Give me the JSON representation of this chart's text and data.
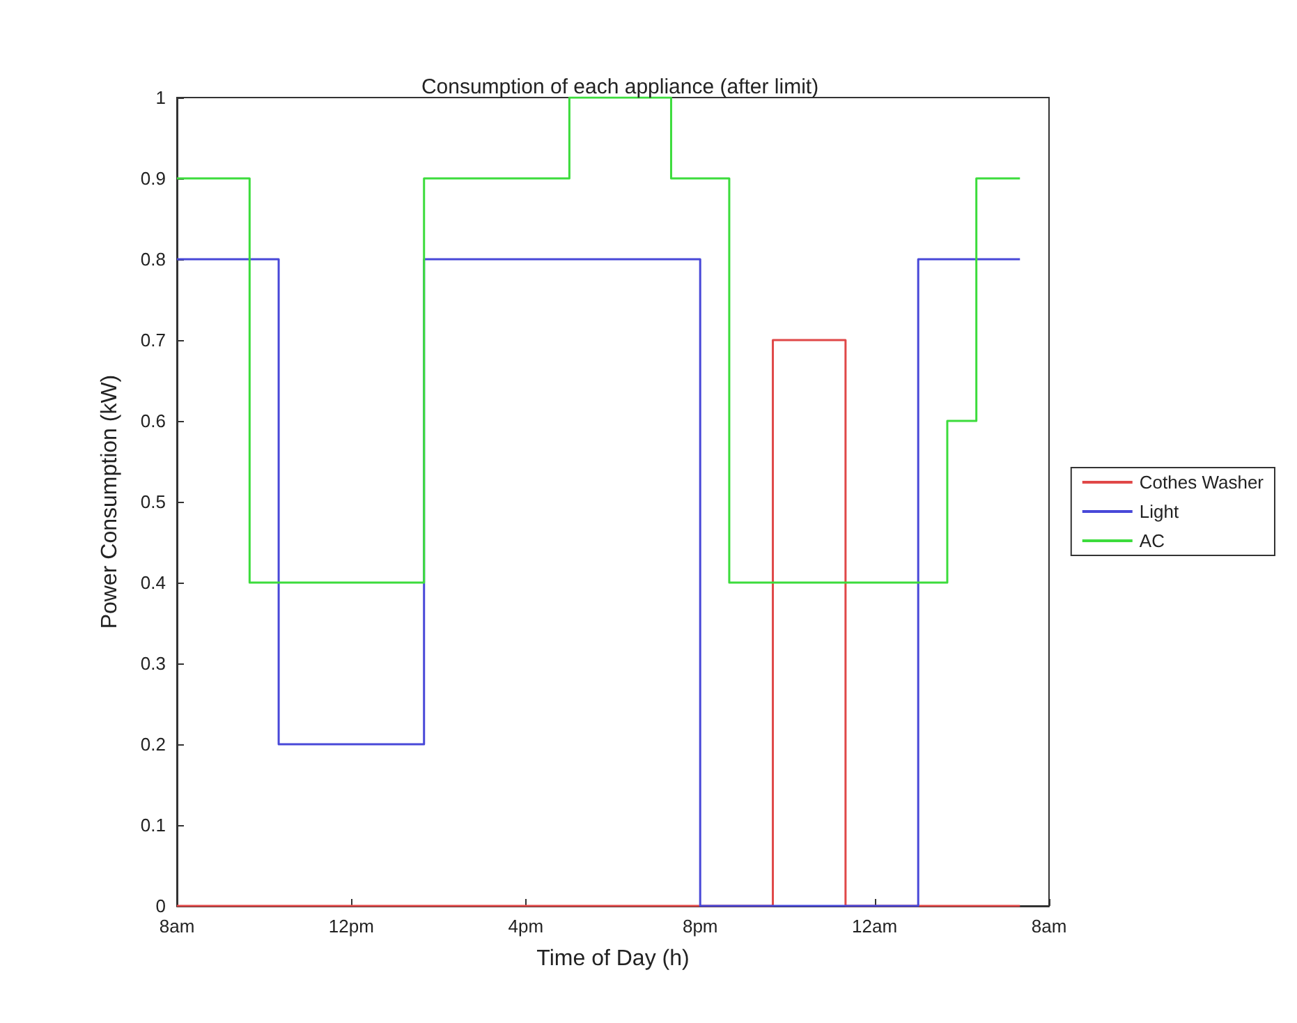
{
  "chart_data": {
    "type": "step",
    "title": "Consumption of each appliance (after limit)",
    "xlabel": "Time of Day (h)",
    "ylabel": "Power Consumption (kW)",
    "categories": [
      "8am",
      null,
      null,
      null,
      null,
      null,
      null,
      null,
      null,
      null,
      null,
      null,
      "12pm",
      null,
      null,
      null,
      null,
      null,
      null,
      null,
      null,
      null,
      null,
      null,
      "4pm",
      null,
      null,
      null,
      null,
      null,
      null,
      null,
      null,
      null,
      null,
      null,
      "8pm",
      null,
      null,
      null,
      null,
      null,
      null,
      null,
      null,
      null,
      null,
      null,
      "12am",
      null,
      null,
      null,
      null,
      null,
      null,
      null,
      null,
      null,
      null,
      null,
      "8am"
    ],
    "ylim": [
      0,
      1
    ],
    "yticks": [
      0,
      0.1,
      0.2,
      0.3,
      0.4,
      0.5,
      0.6,
      0.7,
      0.8,
      0.9,
      1
    ],
    "series": [
      {
        "name": "Cothes Washer",
        "color": "#e04848",
        "values": [
          0,
          0,
          0,
          0,
          0,
          0,
          0,
          0,
          0,
          0,
          0,
          0,
          0,
          0,
          0,
          0,
          0,
          0,
          0,
          0,
          0,
          0,
          0,
          0,
          0,
          0,
          0,
          0,
          0,
          0,
          0,
          0,
          0,
          0,
          0,
          0,
          0,
          0,
          0,
          0,
          0,
          0.7,
          0.7,
          0.7,
          0.7,
          0.7,
          0,
          0,
          0,
          0,
          0,
          0,
          0,
          0,
          0,
          0,
          0,
          0,
          0,
          null,
          null
        ]
      },
      {
        "name": "Light",
        "color": "#4848d8",
        "values": [
          0.8,
          0.8,
          0.8,
          0.8,
          0.8,
          0.8,
          0.8,
          0.2,
          0.2,
          0.2,
          0.2,
          0.2,
          0.2,
          0.2,
          0.2,
          0.2,
          0.2,
          0.8,
          0.8,
          0.8,
          0.8,
          0.8,
          0.8,
          0.8,
          0.8,
          0.8,
          0.8,
          0.8,
          0.8,
          0.8,
          0.8,
          0.8,
          0.8,
          0.8,
          0.8,
          0.8,
          0,
          0,
          0,
          0,
          0,
          0,
          0,
          0,
          0,
          0,
          0,
          0,
          0,
          0,
          0,
          0.8,
          0.8,
          0.8,
          0.8,
          0.8,
          0.8,
          0.8,
          0.8,
          null,
          null
        ]
      },
      {
        "name": "AC",
        "color": "#3cdc3c",
        "values": [
          0.9,
          0.9,
          0.9,
          0.9,
          0.9,
          0.4,
          0.4,
          0.4,
          0.4,
          0.4,
          0.4,
          0.4,
          0.4,
          0.4,
          0.4,
          0.4,
          0.4,
          0.9,
          0.9,
          0.9,
          0.9,
          0.9,
          0.9,
          0.9,
          0.9,
          0.9,
          0.9,
          1,
          1,
          1,
          1,
          1,
          1,
          1,
          0.9,
          0.9,
          0.9,
          0.9,
          0.4,
          0.4,
          0.4,
          0.4,
          0.4,
          0.4,
          0.4,
          0.4,
          0.4,
          0.4,
          0.4,
          0.4,
          0.4,
          0.4,
          0.4,
          0.6,
          0.6,
          0.9,
          0.9,
          0.9,
          0.9,
          null,
          null
        ]
      }
    ],
    "legend": "right",
    "grid": false,
    "marker": "none",
    "line_style": "solid"
  }
}
